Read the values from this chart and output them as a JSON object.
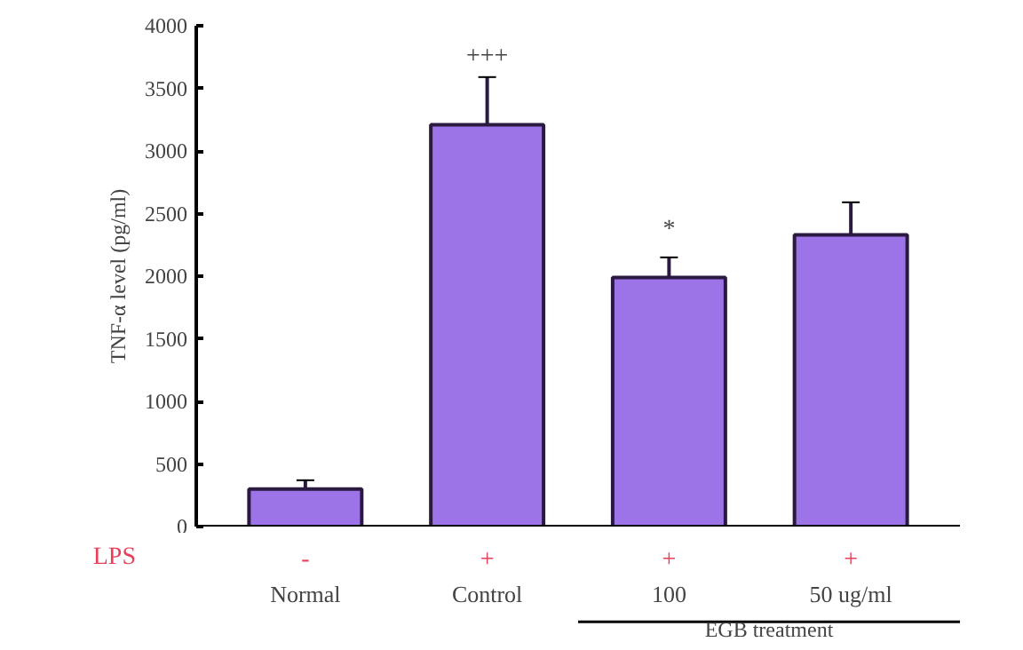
{
  "chart_data": {
    "type": "bar",
    "ylabel": "TNF-α level (pg/ml)",
    "categories": [
      "Normal",
      "Control",
      "100",
      "50 ug/ml"
    ],
    "values": [
      300,
      3210,
      1990,
      2330
    ],
    "errors": [
      70,
      380,
      160,
      260
    ],
    "color": "#9d74e8",
    "ylim": [
      0,
      4000
    ],
    "yticks": [
      0,
      500,
      1000,
      1500,
      2000,
      2500,
      3000,
      3500,
      4000
    ],
    "grid": false,
    "annotations": [
      "+++",
      "*",
      "LPS",
      "-",
      "+",
      "+",
      "+",
      "EGB treatment"
    ]
  }
}
